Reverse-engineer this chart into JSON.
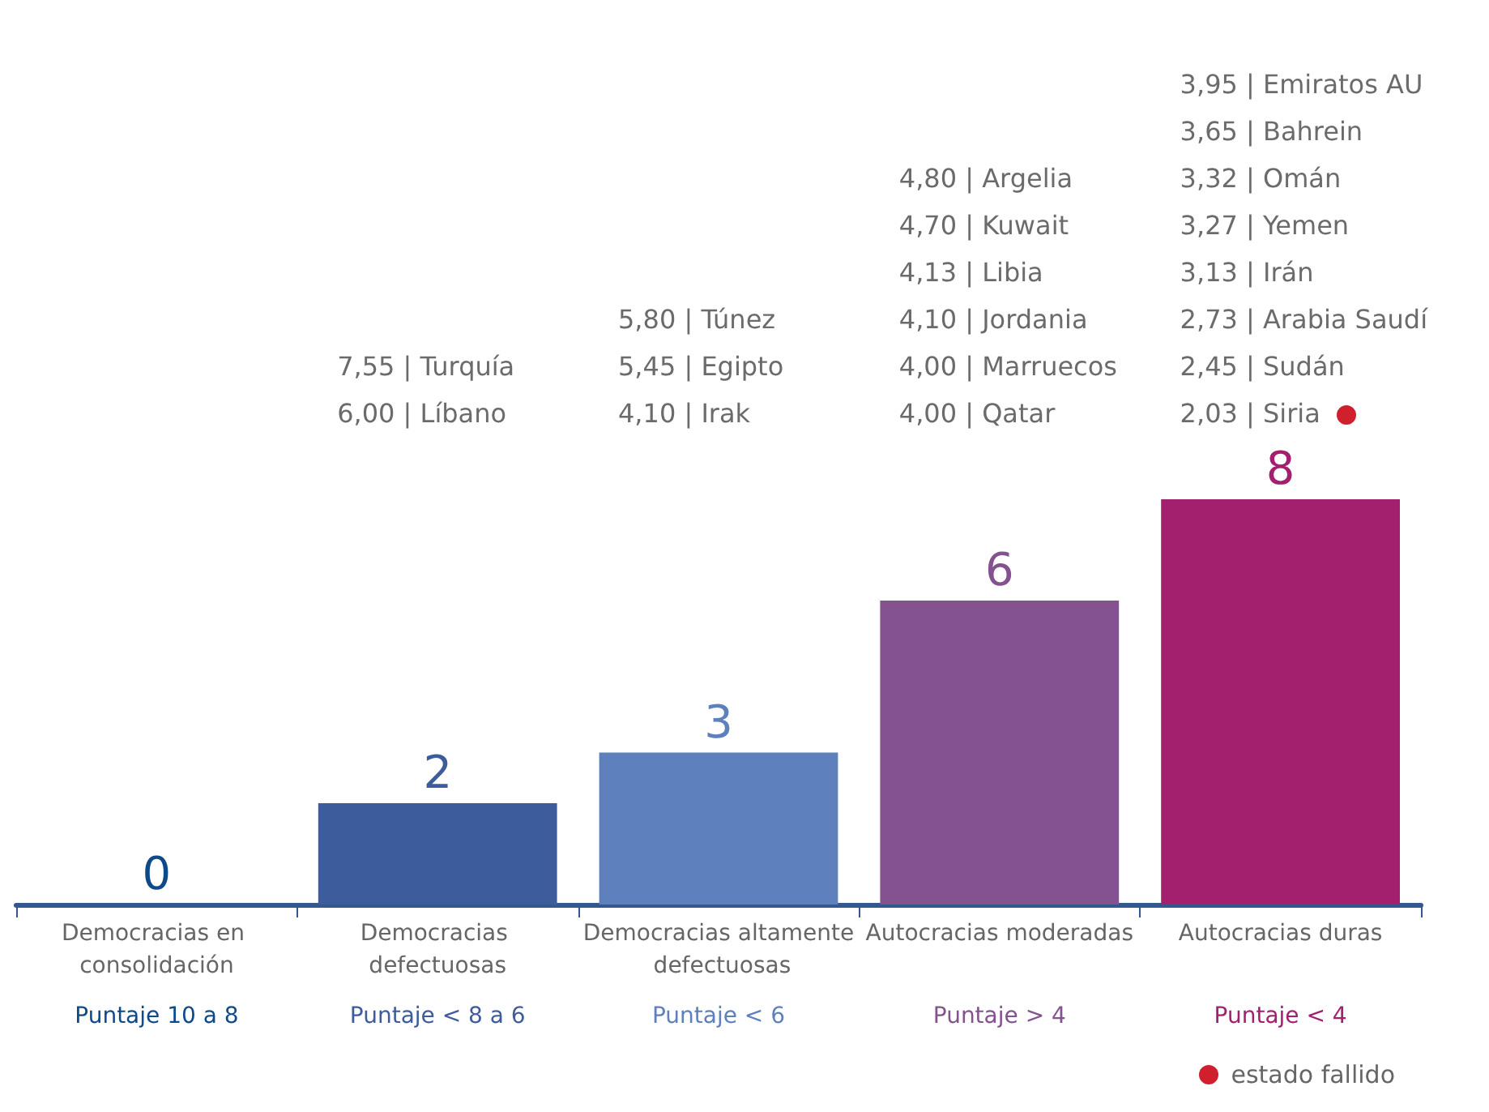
{
  "chart_data": {
    "type": "bar",
    "categories": [
      "Democracias en consolidación",
      "Democracias defectuosas",
      "Democracias altamente defectuosas",
      "Autocracias moderadas",
      "Autocracias duras"
    ],
    "values": [
      0,
      2,
      3,
      6,
      8
    ],
    "colors": [
      "#0d4a8a",
      "#3d5c9c",
      "#5e80bd",
      "#83528f",
      "#a3206f"
    ],
    "ylim": [
      0,
      8
    ],
    "data_labels": true,
    "grid": false,
    "tick_labels": "x",
    "annotations": [
      "Puntaje 10 a 8",
      "Puntaje < 8 a 6",
      "Puntaje < 6",
      "Puntaje > 4",
      "Puntaje < 4",
      "7,55 | Turquía\n6,00 | Líbano",
      "5,80 | Túnez\n5,45 | Egipto\n4,10 | Irak",
      "4,80 | Argelia\n4,70 | Kuwait\n4,13 | Libia\n4,10 | Jordania\n4,00 | Marruecos\n4,00 | Qatar",
      "3,95 | Emiratos AU\n3,65 | Bahrein\n3,32 | Omán\n3,27 | Yemen\n3,13 | Irán\n2,73 | Arabia Saudí\n2,45 | Sudán\n2,03 | Siria",
      "estado fallido"
    ]
  }
}
